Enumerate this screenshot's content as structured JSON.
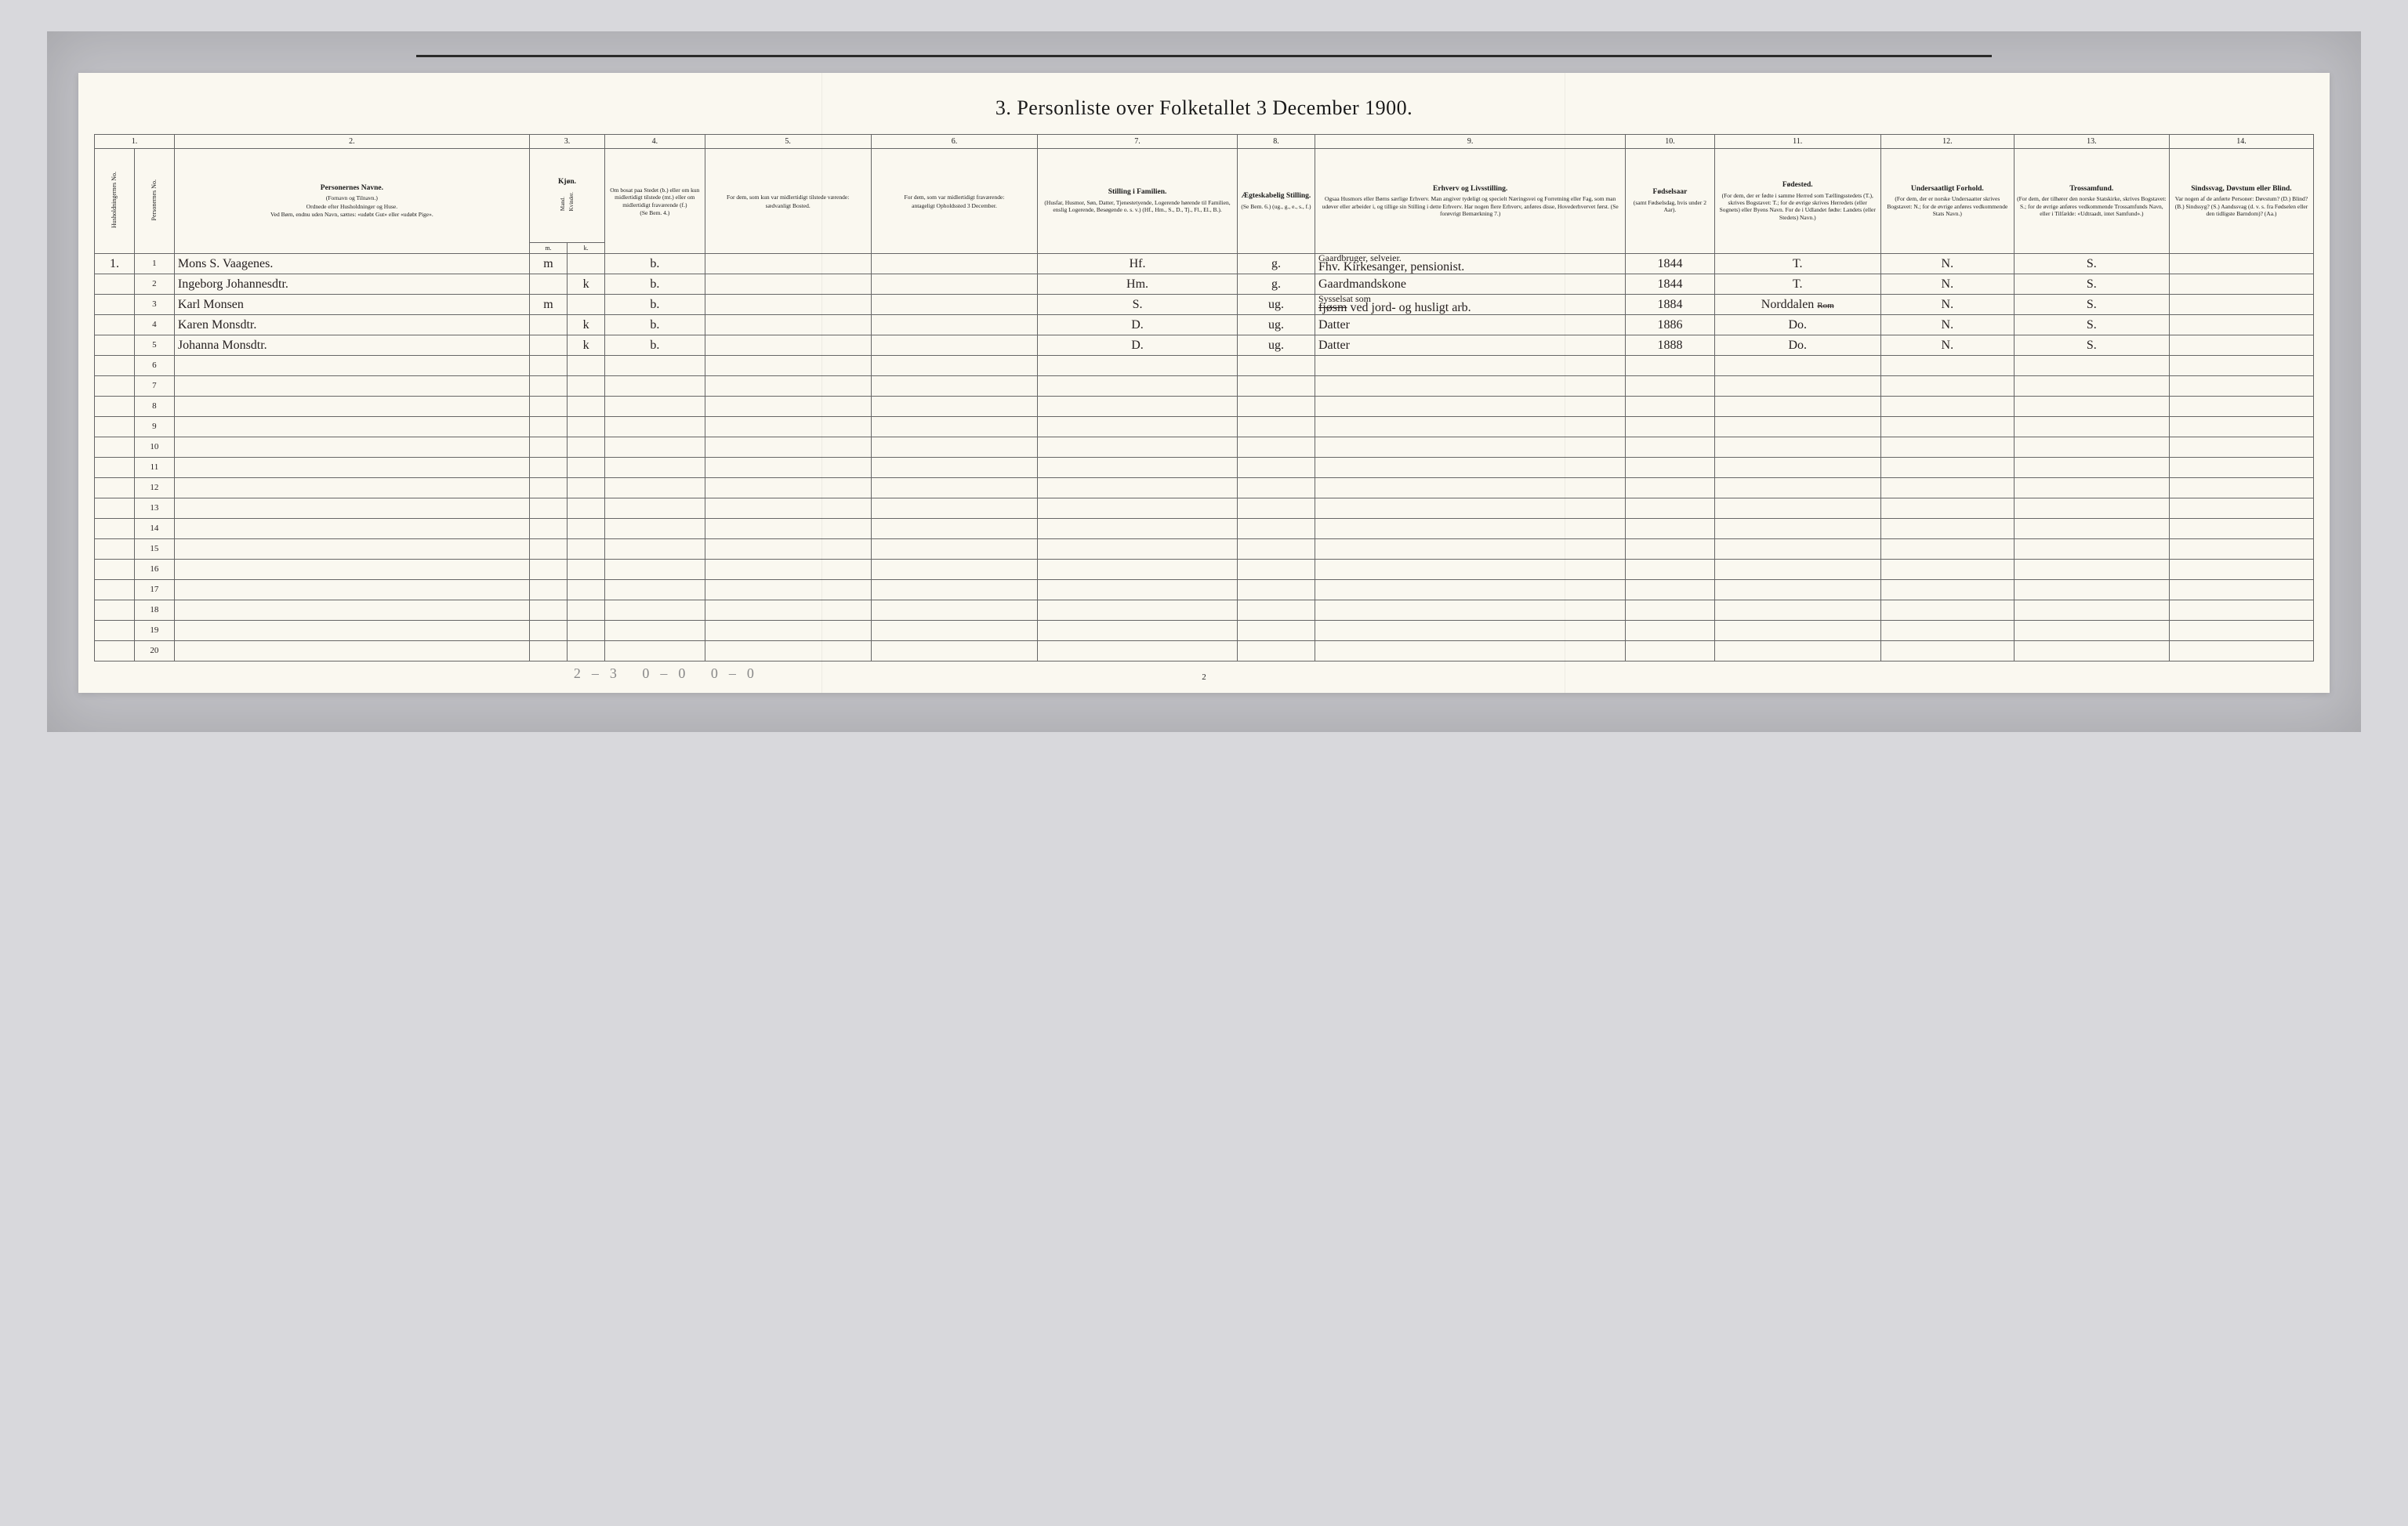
{
  "document": {
    "title": "3.  Personliste over Folketallet 3 December 1900.",
    "page_number": "2",
    "footer_pencil": "2–3  0–0  0–0"
  },
  "columns": {
    "numbers": [
      "1.",
      "2.",
      "3.",
      "4.",
      "5.",
      "6.",
      "7.",
      "8.",
      "9.",
      "10.",
      "11.",
      "12.",
      "13.",
      "14."
    ],
    "hh_no": "Husholdningernes No.",
    "person_no": "Personernes No.",
    "name_main": "Personernes Navne.",
    "name_sub1": "(Fornavn og Tilnavn.)",
    "name_sub2": "Ordnede efter Husholdninger og Huse.",
    "name_sub3": "Ved Børn, endnu uden Navn, sættes: «udøbt Gut» eller «udøbt Pige».",
    "sex_main": "Kjøn.",
    "sex_m_label": "Mand.",
    "sex_k_label": "Kvinder.",
    "sex_m": "m.",
    "sex_k": "k.",
    "resident_main": "Om bosat paa Stedet (b.) eller om kun midlertidigt tilstede (mt.) eller om midlertidigt fraværende (f.)",
    "resident_sub": "(Se Bem. 4.)",
    "temp_present_main": "For dem, som kun var midlertidigt tilstede værende:",
    "temp_present_sub": "sædvanligt Bosted.",
    "temp_absent_main": "For dem, som var midlertidigt fraværende:",
    "temp_absent_sub": "antageligt Opholdssted 3 December.",
    "position_main": "Stilling i Familien.",
    "position_sub": "(Husfar, Husmor, Søn, Datter, Tjenestetyende, Logerende hørende til Familien, enslig Logerende, Besøgende o. s. v.) (Hf., Hm., S., D., Tj., Fl., El., B.).",
    "marital_main": "Ægteskabelig Stilling.",
    "marital_sub": "(Se Bem. 6.) (ug., g., e., s., f.)",
    "occupation_main": "Erhverv og Livsstilling.",
    "occupation_sub": "Ogsaa Husmors eller Børns særlige Erhverv. Man angiver tydeligt og specielt Næringsvei og Forretning eller Fag, som man udøver eller arbeider i, og tillige sin Stilling i dette Erhverv. Har nogen flere Erhverv, anføres disse, Hovederhvervet først. (Se forøvrigt Bemærkning 7.)",
    "birthyear_main": "Fødselsaar",
    "birthyear_sub": "(samt Fødselsdag, hvis under 2 Aar).",
    "birthplace_main": "Fødested.",
    "birthplace_sub": "(For dem, der er fødte i samme Herred som Tællingsstedets (T.), skrives Bogstavet: T.; for de øvrige skrives Herredets (eller Sognets) eller Byens Navn. For de i Udlandet fødte: Landets (eller Stedets) Navn.)",
    "nationality_main": "Undersaatligt Forhold.",
    "nationality_sub": "(For dem, der er norske Undersaatter skrives Bogstavet: N.; for de øvrige anføres vedkommende Stats Navn.)",
    "religion_main": "Trossamfund.",
    "religion_sub": "(For dem, der tilhører den norske Statskirke, skrives Bogstavet: S.; for de øvrige anføres vedkommende Trossamfunds Navn, eller i Tilfælde: «Udtraadt, intet Samfund».)",
    "disability_main": "Sindssvag, Døvstum eller Blind.",
    "disability_sub": "Var nogen af de anførte Personer: Døvstum? (D.) Blind? (B.) Sindssyg? (S.) Aandssvag (d. v. s. fra Fødselen eller den tidligste Barndom)? (Aa.)"
  },
  "row_numbers": [
    "1",
    "2",
    "3",
    "4",
    "5",
    "6",
    "7",
    "8",
    "9",
    "10",
    "11",
    "12",
    "13",
    "14",
    "15",
    "16",
    "17",
    "18",
    "19",
    "20"
  ],
  "people": [
    {
      "household": "1.",
      "name": "Mons S. Vaagenes.",
      "sex_m": "m",
      "sex_k": "",
      "resident": "b.",
      "position": "Hf.",
      "marital": "g.",
      "occupation_pre": "Gaardbruger, selveier.",
      "occupation": "Fhv. Kirkesanger, pensionist.",
      "birth_year": "1844",
      "birth_place": "T.",
      "nationality": "N.",
      "religion": "S."
    },
    {
      "household": "",
      "name": "Ingeborg Johannesdtr.",
      "sex_m": "",
      "sex_k": "k",
      "resident": "b.",
      "position": "Hm.",
      "marital": "g.",
      "occupation_pre": "",
      "occupation": "Gaardmandskone",
      "birth_year": "1844",
      "birth_place": "T.",
      "nationality": "N.",
      "religion": "S."
    },
    {
      "household": "",
      "name": "Karl Monsen",
      "sex_m": "m",
      "sex_k": "",
      "resident": "b.",
      "position": "S.",
      "marital": "ug.",
      "occupation_pre": "Sysselsat som",
      "occupation_strike": "fjøsm",
      "occupation": " ved jord- og husligt arb.",
      "birth_year": "1884",
      "birth_place": "Norddalen",
      "birth_place_strike": "Rom",
      "nationality": "N.",
      "religion": "S."
    },
    {
      "household": "",
      "name": "Karen Monsdtr.",
      "sex_m": "",
      "sex_k": "k",
      "resident": "b.",
      "position": "D.",
      "marital": "ug.",
      "occupation_pre": "",
      "occupation": "Datter",
      "birth_year": "1886",
      "birth_place": "Do.",
      "nationality": "N.",
      "religion": "S."
    },
    {
      "household": "",
      "name": "Johanna Monsdtr.",
      "sex_m": "",
      "sex_k": "k",
      "resident": "b.",
      "position": "D.",
      "marital": "ug.",
      "occupation_pre": "",
      "occupation": "Datter",
      "birth_year": "1888",
      "birth_place": "Do.",
      "nationality": "N.",
      "religion": "S."
    }
  ],
  "style": {
    "paper_bg": "#faf8f0",
    "border_color": "#666666",
    "ink_color": "#262020",
    "print_color": "#1a1a1a",
    "body_bg": "#d8d8dc",
    "frame_bg": "#c0c0c5"
  }
}
